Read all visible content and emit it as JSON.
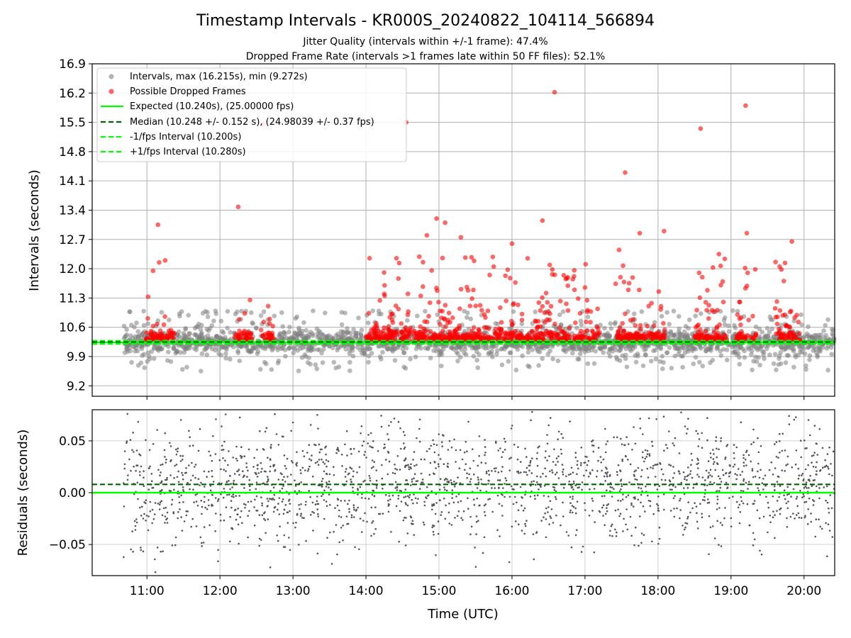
{
  "chart_data": [
    {
      "type": "scatter",
      "title": "Timestamp Intervals - KR000S_20240822_104114_566894",
      "subtitle_1": "Jitter Quality (intervals within +/-1 frame): 47.4%",
      "subtitle_2": "Dropped Frame Rate (intervals >1 frames late within 50 FF files): 52.1%",
      "ylabel": "Intervals (seconds)",
      "xlim_hours": [
        10.25,
        20.42
      ],
      "ylim": [
        8.95,
        16.9
      ],
      "yticks": [
        9.2,
        9.9,
        10.6,
        11.3,
        12.0,
        12.7,
        13.4,
        14.1,
        14.8,
        15.5,
        16.2,
        16.9
      ],
      "ytick_labels": [
        "9.2",
        "9.9",
        "10.6",
        "11.3",
        "12.0",
        "12.7",
        "13.4",
        "14.1",
        "14.8",
        "15.5",
        "16.2",
        "16.9"
      ],
      "grid": true,
      "legend_position": "top-left",
      "legend": [
        "Intervals, max (16.215s), min (9.272s)",
        "Possible Dropped Frames",
        "Expected (10.240s), (25.00000 fps)",
        "Median (10.248 +/- 0.152 s), (24.98039 +/- 0.37 fps)",
        "-1/fps Interval (10.200s)",
        "+1/fps Interval (10.280s)"
      ],
      "reference_lines": {
        "expected": 10.24,
        "median": 10.248,
        "minus_one_fps": 10.2,
        "plus_one_fps": 10.28
      },
      "data_range_hours": [
        10.68,
        20.42
      ],
      "interval_max": 16.215,
      "interval_min": 9.272,
      "dropped_outliers": [
        {
          "x": "11:01",
          "y": 11.33
        },
        {
          "x": "11:09",
          "y": 13.05
        },
        {
          "x": "11:05",
          "y": 11.95
        },
        {
          "x": "11:10",
          "y": 12.15
        },
        {
          "x": "11:15",
          "y": 12.2
        },
        {
          "x": "12:15",
          "y": 13.48
        },
        {
          "x": "12:35",
          "y": 15.45
        },
        {
          "x": "14:33",
          "y": 15.5
        },
        {
          "x": "14:03",
          "y": 12.25
        },
        {
          "x": "14:15",
          "y": 11.4
        },
        {
          "x": "14:25",
          "y": 12.25
        },
        {
          "x": "14:45",
          "y": 11.35
        },
        {
          "x": "14:50",
          "y": 12.8
        },
        {
          "x": "14:58",
          "y": 13.2
        },
        {
          "x": "15:05",
          "y": 13.1
        },
        {
          "x": "15:18",
          "y": 12.75
        },
        {
          "x": "15:45",
          "y": 12.05
        },
        {
          "x": "16:00",
          "y": 12.6
        },
        {
          "x": "16:25",
          "y": 13.15
        },
        {
          "x": "16:35",
          "y": 16.22
        },
        {
          "x": "16:50",
          "y": 11.75
        },
        {
          "x": "17:00",
          "y": 11.55
        },
        {
          "x": "17:28",
          "y": 12.45
        },
        {
          "x": "17:33",
          "y": 14.3
        },
        {
          "x": "17:45",
          "y": 12.85
        },
        {
          "x": "18:05",
          "y": 12.9
        },
        {
          "x": "18:35",
          "y": 15.35
        },
        {
          "x": "18:50",
          "y": 12.35
        },
        {
          "x": "19:12",
          "y": 15.9
        },
        {
          "x": "19:13",
          "y": 12.85
        },
        {
          "x": "19:40",
          "y": 12.05
        },
        {
          "x": "19:50",
          "y": 12.65
        }
      ]
    },
    {
      "type": "scatter",
      "xlabel": "Time (UTC)",
      "ylabel": "Residuals (seconds)",
      "ylim": [
        -0.08,
        0.08
      ],
      "yticks": [
        -0.05,
        0.0,
        0.05
      ],
      "ytick_labels": [
        "−0.05",
        "0.00",
        "0.05"
      ],
      "xticks_hours": [
        11,
        12,
        13,
        14,
        15,
        16,
        17,
        18,
        19,
        20
      ],
      "xtick_labels": [
        "11:00",
        "12:00",
        "13:00",
        "14:00",
        "15:00",
        "16:00",
        "17:00",
        "18:00",
        "19:00",
        "20:00"
      ],
      "reference_lines": {
        "expected": 0.0,
        "median": 0.008
      },
      "grid": true
    }
  ],
  "colors": {
    "intervals": "#808080",
    "dropped": "#ff0000",
    "expected": "#00ff00",
    "median": "#006400",
    "bound": "#00ff00",
    "grid": "#b0b0b0",
    "residual_points": "#555555"
  }
}
